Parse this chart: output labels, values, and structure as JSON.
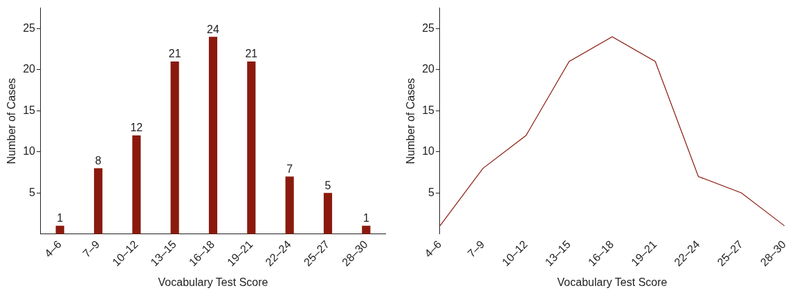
{
  "chart_data": [
    {
      "type": "bar",
      "xlabel": "Vocabulary Test Score",
      "ylabel": "Number of Cases",
      "categories": [
        "4–6",
        "7–9",
        "10–12",
        "13–15",
        "16–18",
        "19–21",
        "22–24",
        "25–27",
        "28–30"
      ],
      "values": [
        1,
        8,
        12,
        21,
        24,
        21,
        7,
        5,
        1
      ],
      "color": "#8b1a0e",
      "ylim": [
        0,
        27.5
      ],
      "yticks": [
        5,
        10,
        15,
        20,
        25
      ],
      "data_labels": true,
      "grid": false,
      "legend": false
    },
    {
      "type": "line",
      "xlabel": "Vocabulary Test Score",
      "ylabel": "Number of Cases",
      "categories": [
        "4–6",
        "7–9",
        "10–12",
        "13–15",
        "16–18",
        "19–21",
        "22–24",
        "25–27",
        "28–30"
      ],
      "values": [
        1,
        8,
        12,
        21,
        24,
        21,
        7,
        5,
        1
      ],
      "color": "#8b1a0e",
      "ylim": [
        0,
        27.5
      ],
      "yticks": [
        5,
        10,
        15,
        20,
        25
      ],
      "marker": "none",
      "grid": false,
      "legend": false
    }
  ]
}
